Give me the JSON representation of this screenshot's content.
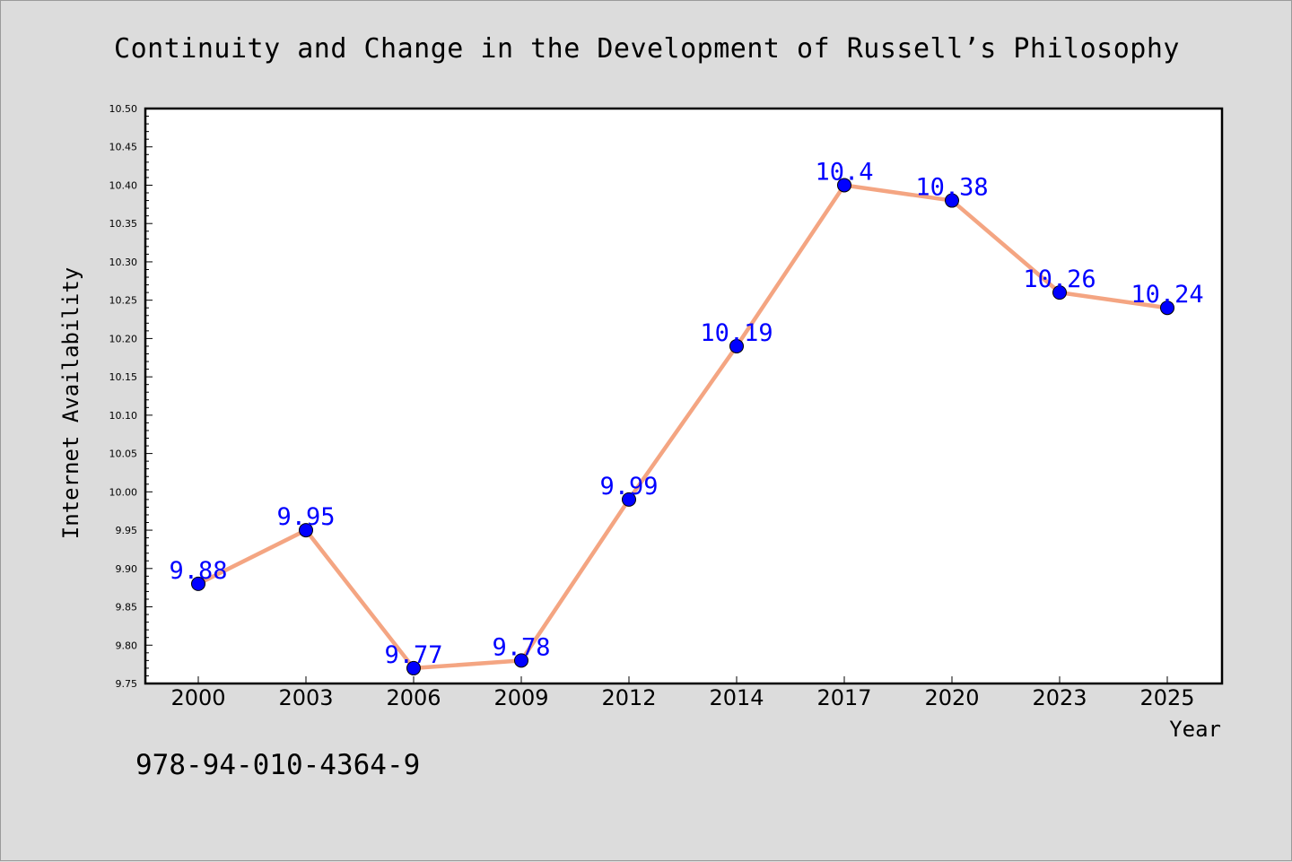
{
  "chart_data": {
    "type": "line",
    "title": "Continuity and Change in the Development of Russell’s Philosophy",
    "xlabel": "Year",
    "ylabel": "Internet Availability",
    "ylim": [
      9.75,
      10.5
    ],
    "y_ticks": [
      "9.75",
      "9.80",
      "9.85",
      "9.90",
      "9.95",
      "10.00",
      "10.05",
      "10.10",
      "10.15",
      "10.20",
      "10.25",
      "10.30",
      "10.35",
      "10.40",
      "10.45",
      "10.50"
    ],
    "categories": [
      "2000",
      "2003",
      "2006",
      "2009",
      "2012",
      "2014",
      "2017",
      "2020",
      "2023",
      "2025"
    ],
    "series": [
      {
        "values": [
          9.88,
          9.95,
          9.77,
          9.78,
          9.99,
          10.19,
          10.4,
          10.38,
          10.26,
          10.24
        ],
        "labels": [
          "9.88",
          "9.95",
          "9.77",
          "9.78",
          "9.99",
          "10.19",
          "10.4",
          "10.38",
          "10.26",
          "10.24"
        ],
        "line_color": "#f4a582",
        "marker_color": "#0000ff",
        "label_color": "#0000ff"
      }
    ],
    "grid": false
  },
  "footer": {
    "isbn": "978-94-010-4364-9"
  },
  "colors": {
    "background": "#dcdcdc",
    "plot_background": "#ffffff"
  }
}
